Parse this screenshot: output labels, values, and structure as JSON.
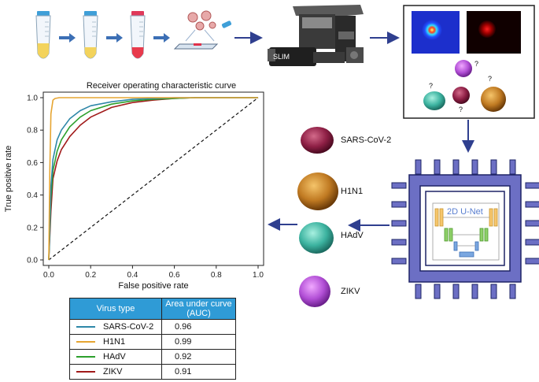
{
  "roc": {
    "title": "Receiver operating characteristic curve",
    "xlabel": "False positive rate",
    "ylabel": "True positive rate"
  },
  "chart_data": {
    "type": "line",
    "title": "Receiver operating characteristic curve",
    "xlabel": "False positive rate",
    "ylabel": "True positive rate",
    "xlim": [
      0,
      1
    ],
    "ylim": [
      0,
      1
    ],
    "xticks": [
      "0.0",
      "0.2",
      "0.4",
      "0.6",
      "0.8",
      "1.0"
    ],
    "yticks": [
      "0.0",
      "0.2",
      "0.4",
      "0.6",
      "0.8",
      "1.0"
    ],
    "series": [
      {
        "name": "SARS-CoV-2",
        "color": "#2e87a8",
        "x": [
          0,
          0.01,
          0.02,
          0.04,
          0.06,
          0.1,
          0.15,
          0.2,
          0.3,
          0.4,
          0.5,
          0.6,
          0.7,
          1.0
        ],
        "y": [
          0,
          0.45,
          0.62,
          0.74,
          0.8,
          0.87,
          0.92,
          0.95,
          0.975,
          0.99,
          0.995,
          1.0,
          1.0,
          1.0
        ]
      },
      {
        "name": "H1N1",
        "color": "#e6a532",
        "x": [
          0,
          0.005,
          0.01,
          0.02,
          0.03,
          0.05,
          0.1,
          1.0
        ],
        "y": [
          0,
          0.55,
          0.9,
          0.985,
          0.995,
          1.0,
          1.0,
          1.0
        ]
      },
      {
        "name": "HAdV",
        "color": "#2ca02c",
        "x": [
          0,
          0.01,
          0.02,
          0.04,
          0.06,
          0.1,
          0.15,
          0.2,
          0.3,
          0.4,
          0.5,
          0.6,
          0.7,
          1.0
        ],
        "y": [
          0,
          0.38,
          0.55,
          0.67,
          0.74,
          0.82,
          0.88,
          0.92,
          0.96,
          0.98,
          0.99,
          0.995,
          1.0,
          1.0
        ]
      },
      {
        "name": "ZIKV",
        "color": "#a11a1a",
        "x": [
          0,
          0.01,
          0.02,
          0.04,
          0.06,
          0.1,
          0.15,
          0.2,
          0.3,
          0.4,
          0.5,
          0.6,
          0.7,
          1.0
        ],
        "y": [
          0,
          0.3,
          0.5,
          0.61,
          0.68,
          0.76,
          0.83,
          0.88,
          0.94,
          0.97,
          0.985,
          0.995,
          1.0,
          1.0
        ]
      }
    ],
    "diagonal": "dashed"
  },
  "table": {
    "header_virus": "Virus type",
    "header_auc": "Area under curve (AUC)",
    "rows": [
      {
        "name": "SARS-CoV-2",
        "auc": "0.96",
        "color": "#2e87a8"
      },
      {
        "name": "H1N1",
        "auc": "0.99",
        "color": "#e6a532"
      },
      {
        "name": "HAdV",
        "auc": "0.92",
        "color": "#2ca02c"
      },
      {
        "name": "ZIKV",
        "auc": "0.91",
        "color": "#a11a1a"
      }
    ]
  },
  "viruses": {
    "sars": "SARS-CoV-2",
    "h1n1": "H1N1",
    "hadv": "HAdV",
    "zikv": "ZIKV"
  },
  "microscope_label": "SLIM",
  "unet_label": "2D U-Net",
  "question_mark": "?",
  "colors": {
    "arrow": "#2f3f8f",
    "chip": "#6c6fc4",
    "chip_border": "#1e2466"
  }
}
